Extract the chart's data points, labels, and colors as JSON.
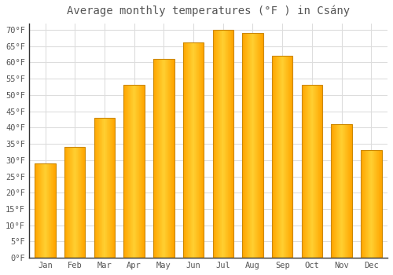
{
  "title": "Average monthly temperatures (°F ) in Csány",
  "months": [
    "Jan",
    "Feb",
    "Mar",
    "Apr",
    "May",
    "Jun",
    "Jul",
    "Aug",
    "Sep",
    "Oct",
    "Nov",
    "Dec"
  ],
  "values": [
    29,
    34,
    43,
    53,
    61,
    66,
    70,
    69,
    62,
    53,
    41,
    33
  ],
  "bar_color_left": "#FFA500",
  "bar_color_center": "#FFD050",
  "bar_color_right": "#FFA500",
  "bar_edge_color": "#CC8800",
  "background_color": "#ffffff",
  "plot_bg_color": "#ffffff",
  "grid_color": "#dddddd",
  "ylim": [
    0,
    72
  ],
  "yticks": [
    0,
    5,
    10,
    15,
    20,
    25,
    30,
    35,
    40,
    45,
    50,
    55,
    60,
    65,
    70
  ],
  "ylabel_suffix": "°F",
  "font_color": "#555555",
  "title_fontsize": 10,
  "tick_fontsize": 7.5,
  "bar_width": 0.7
}
